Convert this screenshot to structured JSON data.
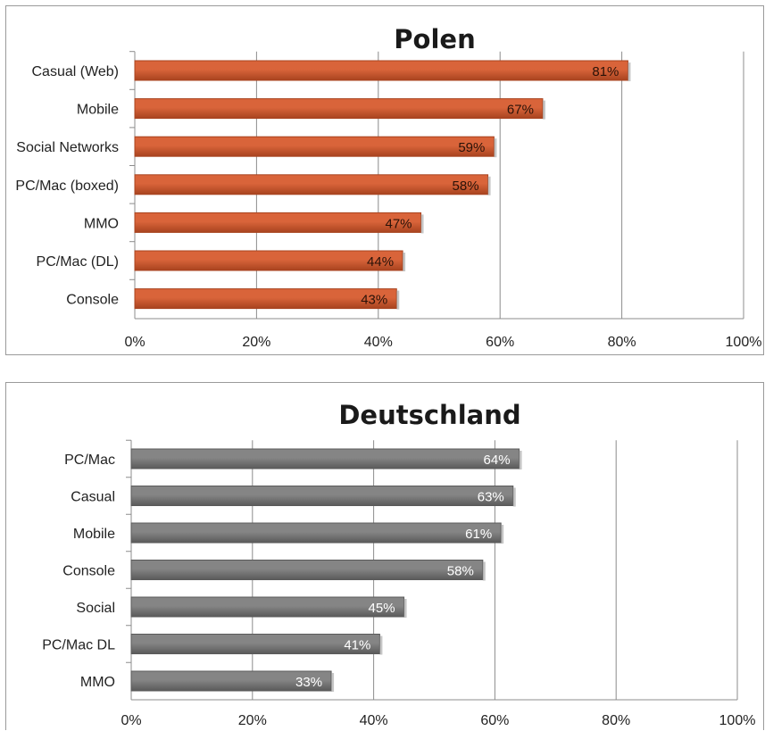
{
  "chart_data": [
    {
      "type": "bar",
      "orientation": "horizontal",
      "title": "Polen",
      "categories": [
        "Casual (Web)",
        "Mobile",
        "Social Networks",
        "PC/Mac (boxed)",
        "MMO",
        "PC/Mac (DL)",
        "Console"
      ],
      "values": [
        81,
        67,
        59,
        58,
        47,
        44,
        43
      ],
      "data_labels": [
        "81%",
        "67%",
        "59%",
        "58%",
        "47%",
        "44%",
        "43%"
      ],
      "xlim": [
        0,
        100
      ],
      "x_ticks": [
        "0%",
        "20%",
        "40%",
        "60%",
        "80%",
        "100%"
      ],
      "grid": "vertical",
      "color": "#d9643a",
      "color_dark": "#a8431f",
      "label_color": "#2a1208"
    },
    {
      "type": "bar",
      "orientation": "horizontal",
      "title": "Deutschland",
      "categories": [
        "PC/Mac",
        "Casual",
        "Mobile",
        "Console",
        "Social",
        "PC/Mac DL",
        "MMO"
      ],
      "values": [
        64,
        63,
        61,
        58,
        45,
        41,
        33
      ],
      "data_labels": [
        "64%",
        "63%",
        "61%",
        "58%",
        "45%",
        "41%",
        "33%"
      ],
      "xlim": [
        0,
        100
      ],
      "x_ticks": [
        "0%",
        "20%",
        "40%",
        "60%",
        "80%",
        "100%"
      ],
      "grid": "vertical",
      "color": "#858585",
      "color_dark": "#5a5a5a",
      "label_color": "#ffffff"
    }
  ]
}
